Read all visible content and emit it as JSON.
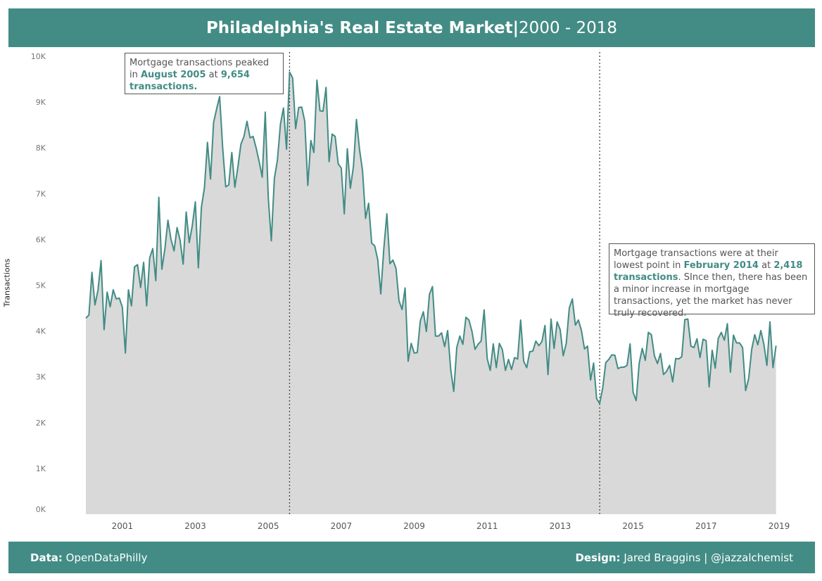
{
  "header": {
    "title_bold": "Philadelphia's Real Estate Market|",
    "title_range": "2000 - 2018"
  },
  "footer": {
    "data_label": "Data:",
    "data_value": "OpenDataPhilly",
    "design_label": "Design:",
    "design_value": "Jared Braggins | @jazzalchemist"
  },
  "annotations": {
    "peak": {
      "text_a": "Mortgage transactions peaked in ",
      "month": "August 2005",
      "text_b": " at ",
      "value": "9,654",
      "unit": "transactions."
    },
    "low": {
      "text_a": "Mortgage transactions were at their lowest point in ",
      "month": "February 2014",
      "text_b": " at ",
      "value": "2,418",
      "unit": "transactions",
      "text_c": ". SInce then, there has been a minor increase in mortgage transactions, yet the market has never truly recovered."
    }
  },
  "colors": {
    "accent": "#428c85",
    "fill": "#d9d9d9",
    "text": "#555555"
  },
  "chart_data": {
    "type": "area",
    "ylabel": "Transactions",
    "xlim": [
      2000,
      2019
    ],
    "ylim": [
      0,
      10000
    ],
    "x_ticks": [
      "2001",
      "2003",
      "2005",
      "2007",
      "2009",
      "2011",
      "2013",
      "2015",
      "2017",
      "2019"
    ],
    "y_ticks": [
      "0K",
      "1K",
      "2K",
      "3K",
      "4K",
      "5K",
      "6K",
      "7K",
      "8K",
      "9K",
      "10K"
    ],
    "grid": false,
    "reference_lines": [
      {
        "date": "2005-08"
      },
      {
        "date": "2014-02"
      }
    ],
    "start": "2000-01",
    "series": [
      {
        "values": [
          4280,
          4350,
          5280,
          4570,
          4900,
          5540,
          4030,
          4850,
          4530,
          4900,
          4700,
          4720,
          4520,
          3520,
          4900,
          4550,
          5400,
          5450,
          4950,
          5500,
          4550,
          5600,
          5800,
          5100,
          6920,
          5350,
          5800,
          6420,
          6000,
          5750,
          6260,
          5980,
          5460,
          6600,
          5930,
          6300,
          6820,
          5380,
          6700,
          7130,
          8120,
          7320,
          8550,
          8850,
          9120,
          8000,
          7150,
          7190,
          7900,
          7140,
          7580,
          8080,
          8250,
          8580,
          8220,
          8250,
          8000,
          7700,
          7360,
          8780,
          6910,
          5970,
          7330,
          7730,
          8520,
          8870,
          7970,
          9654,
          9530,
          8420,
          8880,
          8890,
          8580,
          7180,
          8160,
          7900,
          9480,
          8810,
          8800,
          9320,
          7700,
          8300,
          8250,
          7650,
          7560,
          6560,
          7980,
          7120,
          7590,
          8620,
          7970,
          7500,
          6460,
          6790,
          5920,
          5860,
          5560,
          4810,
          5800,
          6560,
          5470,
          5550,
          5370,
          4660,
          4470,
          4940,
          3340,
          3730,
          3520,
          3530,
          4220,
          4420,
          3990,
          4800,
          4970,
          3890,
          3890,
          3960,
          3660,
          4010,
          3160,
          2680,
          3640,
          3890,
          3710,
          4300,
          4240,
          3990,
          3600,
          3710,
          3780,
          4460,
          3400,
          3140,
          3720,
          3200,
          3730,
          3590,
          3140,
          3380,
          3160,
          3420,
          3390,
          4240,
          3340,
          3200,
          3550,
          3560,
          3780,
          3680,
          3770,
          4120,
          3050,
          4260,
          3620,
          4200,
          4030,
          3460,
          3730,
          4500,
          4700,
          4130,
          4240,
          4010,
          3610,
          3670,
          2930,
          3300,
          2520,
          2418,
          2760,
          3310,
          3380,
          3480,
          3470,
          3180,
          3210,
          3210,
          3250,
          3720,
          2660,
          2480,
          3300,
          3620,
          3360,
          3970,
          3920,
          3460,
          3290,
          3510,
          3050,
          3120,
          3250,
          2890,
          3400,
          3390,
          3440,
          4250,
          4260,
          3670,
          3640,
          3830,
          3420,
          3820,
          3790,
          2780,
          3580,
          3190,
          3840,
          3970,
          3800,
          4160,
          3100,
          3910,
          3740,
          3740,
          3640,
          2700,
          2960,
          3600,
          3920,
          3700,
          4010,
          3710,
          3250,
          4200,
          3200,
          3680
        ]
      }
    ]
  }
}
